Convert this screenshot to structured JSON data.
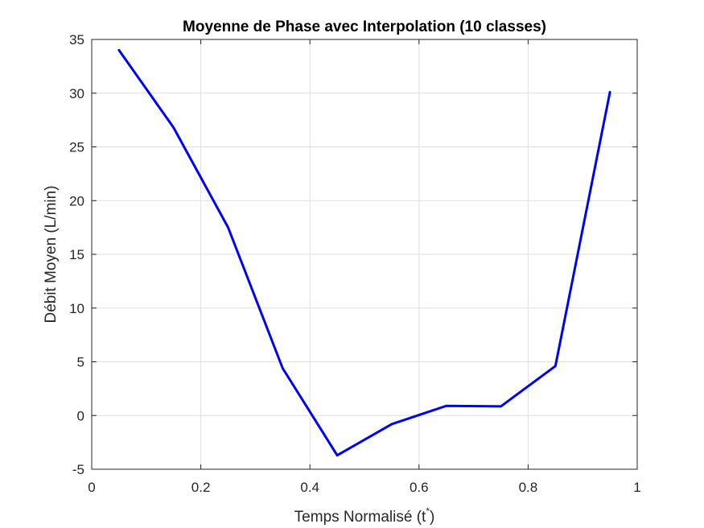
{
  "chart_data": {
    "type": "line",
    "title": "Moyenne de Phase avec Interpolation (10 classes)",
    "xlabel": "Temps Normalisé (t",
    "xlabel_superscript": "*",
    "xlabel_suffix": ")",
    "ylabel": "Débit Moyen (L/min)",
    "xlim": [
      0,
      1
    ],
    "ylim": [
      -5,
      35
    ],
    "xticks": [
      0,
      0.2,
      0.4,
      0.6,
      0.8,
      1
    ],
    "xtick_labels": [
      "0",
      "0.2",
      "0.4",
      "0.6",
      "0.8",
      "1"
    ],
    "yticks": [
      -5,
      0,
      5,
      10,
      15,
      20,
      25,
      30,
      35
    ],
    "ytick_labels": [
      "-5",
      "0",
      "5",
      "10",
      "15",
      "20",
      "25",
      "30",
      "35"
    ],
    "grid": true,
    "series": [
      {
        "color": "#0000ff",
        "x": [
          0.05,
          0.15,
          0.25,
          0.35,
          0.45,
          0.55,
          0.65,
          0.75,
          0.85,
          0.95
        ],
        "y": [
          34.0,
          26.8,
          17.5,
          4.4,
          -3.7,
          -0.8,
          0.9,
          0.85,
          4.6,
          30.1
        ]
      }
    ]
  }
}
